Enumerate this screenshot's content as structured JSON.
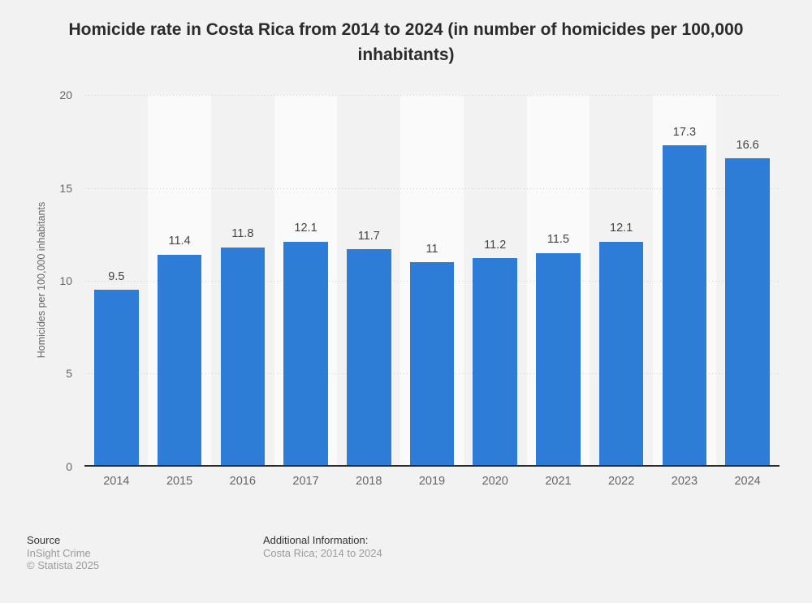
{
  "chart_data": {
    "type": "bar",
    "title": "Homicide rate in Costa Rica from 2014 to 2024 (in number of homicides per 100,000 inhabitants)",
    "title_lines": [
      "Homicide rate in Costa Rica from 2014 to 2024 (in number of homicides per 100,000",
      "inhabitants)"
    ],
    "categories": [
      "2014",
      "2015",
      "2016",
      "2017",
      "2018",
      "2019",
      "2020",
      "2021",
      "2022",
      "2023",
      "2024"
    ],
    "values": [
      9.5,
      11.4,
      11.8,
      12.1,
      11.7,
      11,
      11.2,
      11.5,
      12.1,
      17.3,
      16.6
    ],
    "xlabel": "",
    "ylabel": "Homicides per 100,000 inhabitants",
    "ylim": [
      0,
      20
    ],
    "yticks": [
      0,
      5,
      10,
      15,
      20
    ],
    "grid": "horizontal-dotted",
    "legend": "none",
    "colors": {
      "bar": "#2d7cd5",
      "background": "#f2f2f2",
      "plot_band": "#fafafa",
      "gridline": "#cccccc",
      "axis_line": "#2b2b2b",
      "title_text": "#2b2b2b",
      "tick_text": "#666666",
      "value_text": "#444444",
      "footer_dark_text": "#333333",
      "footer_gray_text": "#9b9b9b"
    }
  },
  "footer": {
    "source_label": "Source",
    "source_name": "InSight Crime",
    "copyright": "© Statista 2025",
    "additional_info_label": "Additional Information:",
    "additional_info_value": "Costa Rica; 2014 to 2024"
  }
}
